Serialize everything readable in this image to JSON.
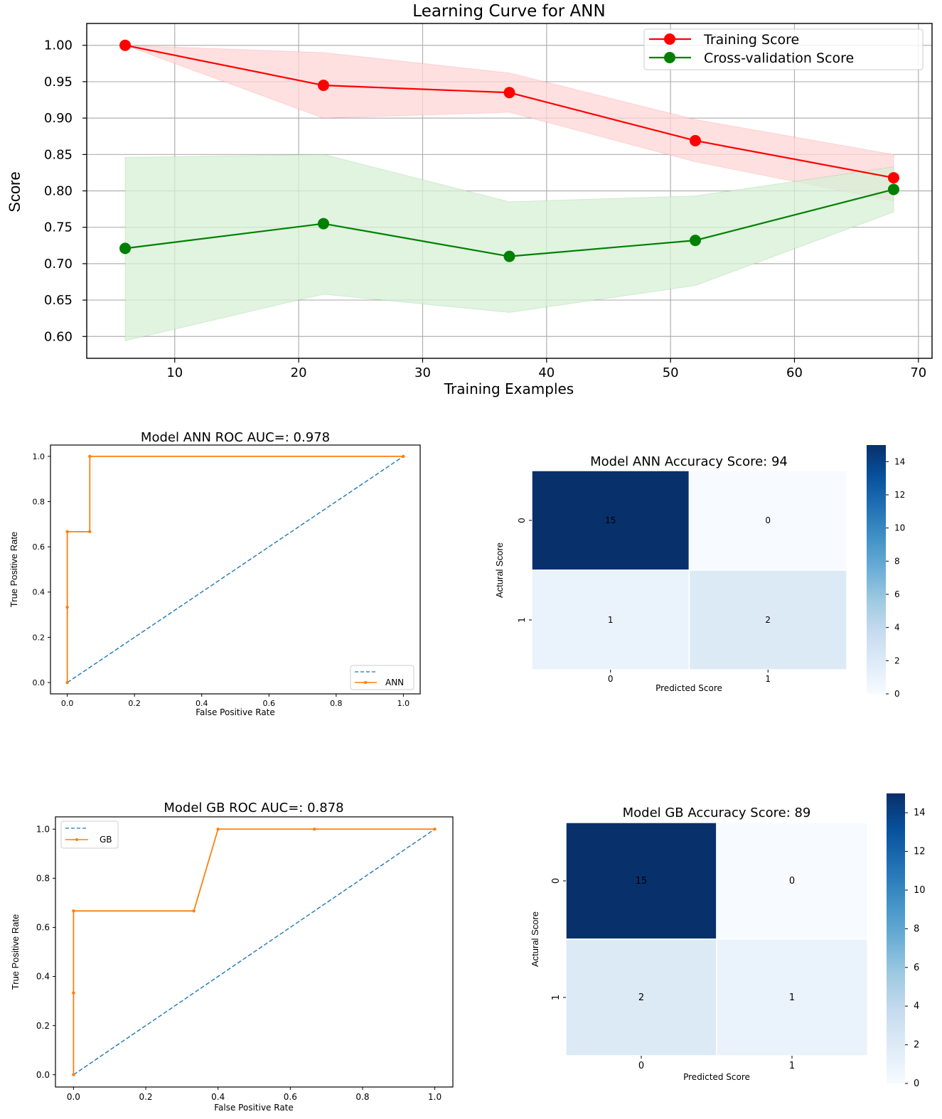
{
  "chart_data": [
    {
      "type": "line",
      "title": "Learning Curve for ANN",
      "xlabel": "Training Examples",
      "ylabel": "Score",
      "xlim": [
        2.9,
        71.1
      ],
      "ylim": [
        0.57,
        1.03
      ],
      "xticks": [
        10,
        20,
        30,
        40,
        50,
        60,
        70
      ],
      "xtick_labels": [
        "10",
        "20",
        "30",
        "40",
        "50",
        "60",
        "70"
      ],
      "yticks": [
        0.6,
        0.65,
        0.7,
        0.75,
        0.8,
        0.85,
        0.9,
        0.95,
        1.0
      ],
      "ytick_labels": [
        "0.60",
        "0.65",
        "0.70",
        "0.75",
        "0.80",
        "0.85",
        "0.90",
        "0.95",
        "1.00"
      ],
      "grid": true,
      "legend_loc": "upper right",
      "x": [
        6,
        22,
        37,
        52,
        68
      ],
      "series": [
        {
          "name": "Training Score",
          "color": "#ff0000",
          "band_color": "#ffd6d6",
          "values": [
            1.0,
            0.945,
            0.935,
            0.869,
            0.818
          ],
          "upper": [
            1.0,
            0.99,
            0.962,
            0.898,
            0.85
          ],
          "lower": [
            1.0,
            0.9,
            0.908,
            0.84,
            0.786
          ]
        },
        {
          "name": "Cross-validation Score",
          "color": "#008000",
          "band_color": "#d6f0d6",
          "values": [
            0.721,
            0.755,
            0.71,
            0.732,
            0.802
          ],
          "upper": [
            0.846,
            0.85,
            0.785,
            0.793,
            0.833
          ],
          "lower": [
            0.594,
            0.658,
            0.633,
            0.67,
            0.771
          ]
        }
      ]
    },
    {
      "type": "line",
      "title": "Model ANN ROC AUC=: 0.978",
      "xlabel": "False Positive Rate",
      "ylabel": "True Positive Rate",
      "xlim": [
        -0.05,
        1.05
      ],
      "ylim": [
        -0.05,
        1.05
      ],
      "ticks": [
        0.0,
        0.2,
        0.4,
        0.6,
        0.8,
        1.0
      ],
      "tick_labels": [
        "0.0",
        "0.2",
        "0.4",
        "0.6",
        "0.8",
        "1.0"
      ],
      "legend_loc": "lower right",
      "series": [
        {
          "name": "",
          "style": "dashed",
          "color": "#1f77b4",
          "x": [
            0,
            1
          ],
          "y": [
            0,
            1
          ]
        },
        {
          "name": "ANN",
          "style": "solid-marker",
          "color": "#ff7f0e",
          "x": [
            0,
            0,
            0,
            0.067,
            0.067,
            1.0
          ],
          "y": [
            0,
            0.333,
            0.667,
            0.667,
            1.0,
            1.0
          ]
        }
      ]
    },
    {
      "type": "heatmap",
      "title": "Model ANN Accuracy Score: 94",
      "xlabel": "Predicted Score",
      "ylabel": "Actural Score",
      "row_labels": [
        "0",
        "1"
      ],
      "col_labels": [
        "0",
        "1"
      ],
      "values": [
        [
          15,
          0
        ],
        [
          1,
          2
        ]
      ],
      "colorbar_ticks": [
        0,
        2,
        4,
        6,
        8,
        10,
        12,
        14
      ],
      "colorbar_tick_labels": [
        "0",
        "2",
        "4",
        "6",
        "8",
        "10",
        "12",
        "14"
      ],
      "vmax": 15
    },
    {
      "type": "line",
      "title": "Model GB ROC AUC=: 0.878",
      "xlabel": "False Positive Rate",
      "ylabel": "True Positive Rate",
      "xlim": [
        -0.05,
        1.05
      ],
      "ylim": [
        -0.05,
        1.05
      ],
      "ticks": [
        0.0,
        0.2,
        0.4,
        0.6,
        0.8,
        1.0
      ],
      "tick_labels": [
        "0.0",
        "0.2",
        "0.4",
        "0.6",
        "0.8",
        "1.0"
      ],
      "legend_loc": "upper left",
      "series": [
        {
          "name": "",
          "style": "dashed",
          "color": "#1f77b4",
          "x": [
            0,
            1
          ],
          "y": [
            0,
            1
          ]
        },
        {
          "name": "GB",
          "style": "solid-marker",
          "color": "#ff7f0e",
          "x": [
            0,
            0,
            0,
            0.333,
            0.4,
            0.667,
            1.0
          ],
          "y": [
            0,
            0.333,
            0.667,
            0.667,
            1.0,
            1.0,
            1.0
          ]
        }
      ]
    },
    {
      "type": "heatmap",
      "title": "Model GB Accuracy Score: 89",
      "xlabel": "Predicted Score",
      "ylabel": "Actural Score",
      "row_labels": [
        "0",
        "1"
      ],
      "col_labels": [
        "0",
        "1"
      ],
      "values": [
        [
          15,
          0
        ],
        [
          2,
          1
        ]
      ],
      "colorbar_ticks": [
        0,
        2,
        4,
        6,
        8,
        10,
        12,
        14
      ],
      "colorbar_tick_labels": [
        "0",
        "2",
        "4",
        "6",
        "8",
        "10",
        "12",
        "14"
      ],
      "vmax": 15
    }
  ]
}
